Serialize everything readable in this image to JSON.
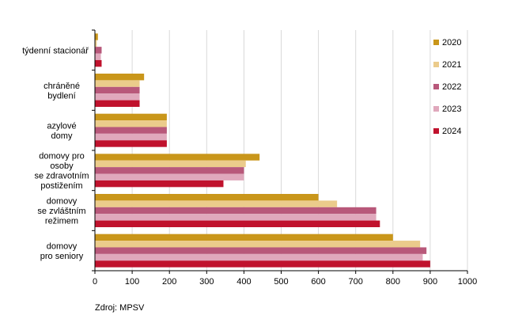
{
  "chart_data": {
    "type": "bar",
    "orientation": "horizontal",
    "title": "",
    "xlabel": "",
    "ylabel": "",
    "xlim": [
      0,
      1000
    ],
    "xticks": [
      0,
      100,
      200,
      300,
      400,
      500,
      600,
      700,
      800,
      900,
      1000
    ],
    "grid": true,
    "legend_position": "right",
    "categories": [
      [
        "týdenní stacionář"
      ],
      [
        "chráněné",
        "bydlení"
      ],
      [
        "azylové",
        "domy"
      ],
      [
        "domovy pro",
        "osoby",
        "se zdravotním",
        "postižením"
      ],
      [
        "domovy",
        "se zvláštním",
        "režimem"
      ],
      [
        "domovy",
        "pro seniory"
      ]
    ],
    "series": [
      {
        "name": "2020",
        "color": "#C9961A",
        "values": [
          8,
          132,
          193,
          442,
          600,
          800
        ]
      },
      {
        "name": "2021",
        "color": "#EBCB8B",
        "values": [
          5,
          120,
          193,
          405,
          650,
          873
        ]
      },
      {
        "name": "2022",
        "color": "#B8587A",
        "values": [
          18,
          120,
          193,
          400,
          755,
          890
        ]
      },
      {
        "name": "2023",
        "color": "#E0A8BC",
        "values": [
          16,
          120,
          193,
          400,
          755,
          880
        ]
      },
      {
        "name": "2024",
        "color": "#C0122D",
        "values": [
          18,
          120,
          193,
          345,
          765,
          900
        ]
      }
    ]
  },
  "source": "Zdroj: MPSV"
}
